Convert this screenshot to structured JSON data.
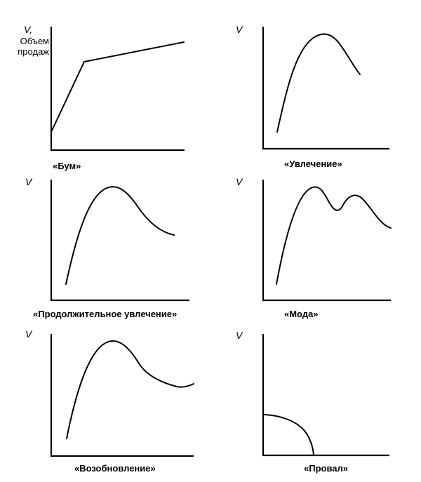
{
  "panels": [
    {
      "id": "boom",
      "ylabel": "V,",
      "ylabel_extra": "Объем продаж",
      "caption": "«Бум»"
    },
    {
      "id": "fad",
      "ylabel": "V",
      "caption": "«Увлечение»"
    },
    {
      "id": "extended-fad",
      "ylabel": "V",
      "caption": "«Продолжительное увлечение»"
    },
    {
      "id": "fashion",
      "ylabel": "V",
      "caption": "«Мода»"
    },
    {
      "id": "revival",
      "ylabel": "V",
      "caption": "«Возобновление»"
    },
    {
      "id": "failure",
      "ylabel": "V",
      "caption": "«Провал»"
    }
  ]
}
